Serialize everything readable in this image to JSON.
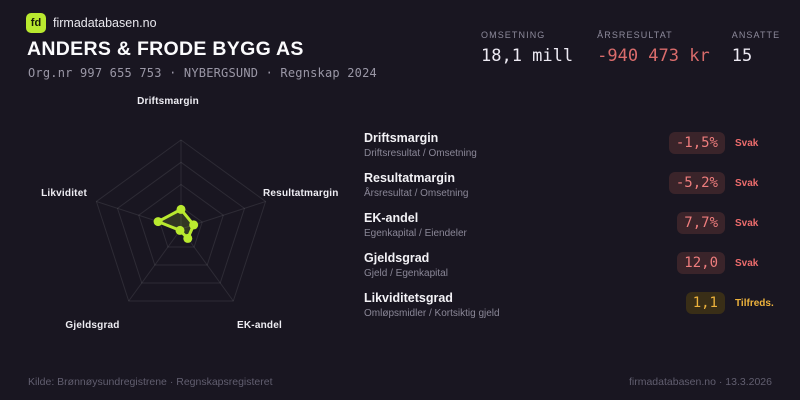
{
  "brand": {
    "logo_text": "fd",
    "site": "firmadatabasen.no"
  },
  "header": {
    "company_name": "ANDERS & FRODE BYGG AS",
    "org_line": "Org.nr 997 655 753 · NYBERGSUND · Regnskap 2024"
  },
  "stats": [
    {
      "label": "OMSETNING",
      "value": "18,1 mill",
      "tone": "normal"
    },
    {
      "label": "ÅRSRESULTAT",
      "value": "-940 473 kr",
      "tone": "negative"
    },
    {
      "label": "ANSATTE",
      "value": "15",
      "tone": "normal"
    }
  ],
  "chart_data": {
    "type": "radar",
    "title": "",
    "axes": [
      "Driftsmargin",
      "Resultatmargin",
      "EK-andel",
      "Gjeldsgrad",
      "Likviditet"
    ],
    "axis_angles_deg": [
      90,
      18,
      -54,
      -126,
      162
    ],
    "values_normalized": [
      0.22,
      0.15,
      0.13,
      0.02,
      0.27
    ],
    "metric_values": [
      "-1,5%",
      "-5,2%",
      "7,7%",
      "12,0",
      "1,1"
    ],
    "scale": [
      0,
      1
    ],
    "levels": 4,
    "grid": "pentagon",
    "legend": "none",
    "accent_color": "#b9e92f"
  },
  "metrics": [
    {
      "title": "Driftsmargin",
      "formula": "Driftsresultat / Omsetning",
      "value": "-1,5%",
      "status": "Svak",
      "tone": "bad"
    },
    {
      "title": "Resultatmargin",
      "formula": "Årsresultat / Omsetning",
      "value": "-5,2%",
      "status": "Svak",
      "tone": "bad"
    },
    {
      "title": "EK-andel",
      "formula": "Egenkapital / Eiendeler",
      "value": "7,7%",
      "status": "Svak",
      "tone": "bad"
    },
    {
      "title": "Gjeldsgrad",
      "formula": "Gjeld / Egenkapital",
      "value": "12,0",
      "status": "Svak",
      "tone": "bad"
    },
    {
      "title": "Likviditetsgrad",
      "formula": "Omløpsmidler / Kortsiktig gjeld",
      "value": "1,1",
      "status": "Tilfreds.",
      "tone": "warn"
    }
  ],
  "footer": {
    "left": "Kilde: Brønnøysundregistrene · Regnskapsregisteret",
    "right": "firmadatabasen.no · 13.3.2026"
  },
  "colors": {
    "background": "#191621",
    "accent_lime": "#b9e92f",
    "negative_red": "#d96b6b",
    "warn_amber": "#eeb33c",
    "muted_text": "#8d8a9b"
  }
}
